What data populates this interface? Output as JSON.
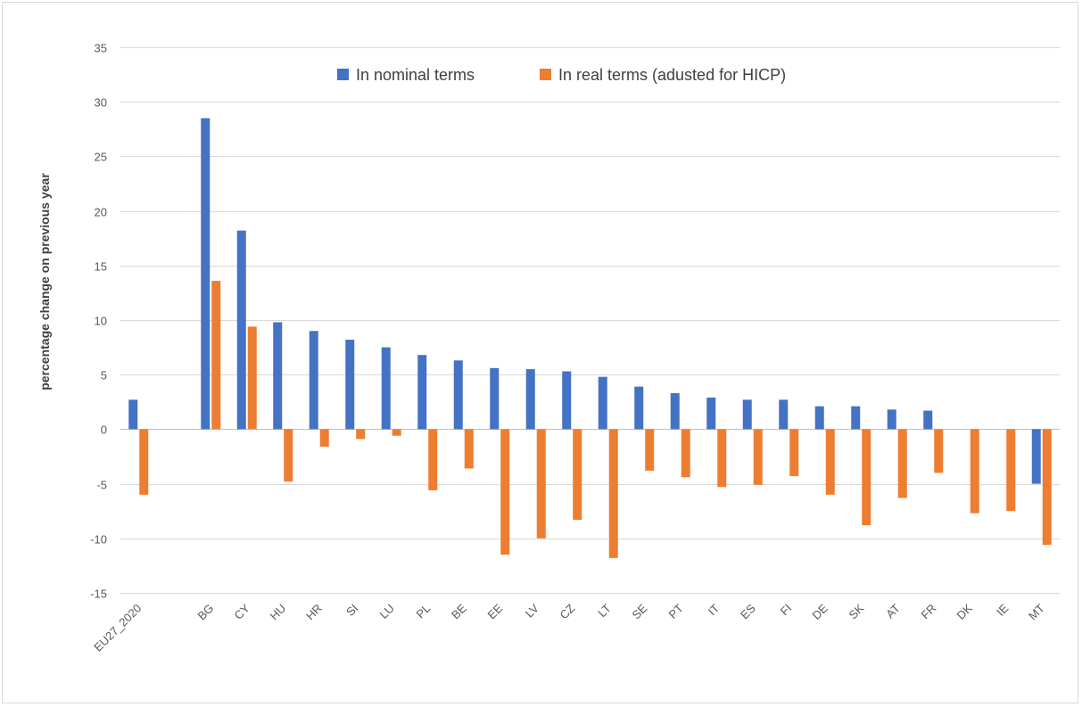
{
  "chart_data": {
    "type": "bar",
    "title": "",
    "xlabel": "",
    "ylabel": "percentage change on previous year",
    "ylim": [
      -15,
      35
    ],
    "yticks": [
      35,
      30,
      25,
      20,
      15,
      10,
      5,
      0,
      -5,
      -10,
      -15
    ],
    "grid": true,
    "legend_position": "top",
    "categories": [
      "EU27_2020",
      "",
      "BG",
      "CY",
      "HU",
      "HR",
      "SI",
      "LU",
      "PL",
      "BE",
      "EE",
      "LV",
      "CZ",
      "LT",
      "SE",
      "PT",
      "IT",
      "ES",
      "FI",
      "DE",
      "SK",
      "AT",
      "FR",
      "DK",
      "IE",
      "MT"
    ],
    "series": [
      {
        "name": "In nominal terms",
        "color": "#4472C4",
        "values": [
          2.7,
          null,
          28.5,
          18.2,
          9.8,
          9.0,
          8.2,
          7.5,
          6.8,
          6.3,
          5.6,
          5.5,
          5.3,
          4.8,
          3.9,
          3.3,
          2.9,
          2.7,
          2.7,
          2.1,
          2.1,
          1.8,
          1.7,
          0,
          0,
          -5.0
        ]
      },
      {
        "name": "In real terms (adusted for HICP)",
        "color": "#ED7D31",
        "values": [
          -6.0,
          null,
          13.6,
          9.4,
          -4.8,
          -1.6,
          -0.9,
          -0.6,
          -5.6,
          -3.6,
          -11.5,
          -10.0,
          -8.3,
          -11.8,
          -3.8,
          -4.4,
          -5.3,
          -5.1,
          -4.3,
          -6.0,
          -8.8,
          -6.3,
          -4.0,
          -7.7,
          -7.5,
          -10.6
        ]
      }
    ]
  }
}
